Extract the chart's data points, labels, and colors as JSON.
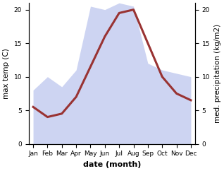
{
  "months": [
    "Jan",
    "Feb",
    "Mar",
    "Apr",
    "May",
    "Jun",
    "Jul",
    "Aug",
    "Sep",
    "Oct",
    "Nov",
    "Dec"
  ],
  "month_positions": [
    1,
    2,
    3,
    4,
    5,
    6,
    7,
    8,
    9,
    10,
    11,
    12
  ],
  "temperature": [
    5.5,
    4.0,
    4.5,
    7.0,
    11.5,
    16.0,
    19.5,
    20.0,
    15.0,
    10.0,
    7.5,
    6.5
  ],
  "precipitation": [
    8.0,
    10.0,
    8.5,
    11.0,
    20.5,
    20.0,
    21.0,
    20.5,
    12.0,
    11.0,
    10.5,
    10.0
  ],
  "temp_color": "#993333",
  "precip_fill_color": "#c5cdf0",
  "precip_line_color": "#c5cdf0",
  "precip_alpha": 0.85,
  "ylabel_left": "max temp (C)",
  "ylabel_right": "med. precipitation (kg/m2)",
  "xlabel": "date (month)",
  "ylim_left": [
    0,
    21
  ],
  "ylim_right": [
    0,
    21
  ],
  "yticks_left": [
    0,
    5,
    10,
    15,
    20
  ],
  "yticks_right": [
    0,
    5,
    10,
    15,
    20
  ],
  "background_color": "#ffffff",
  "label_fontsize": 7.5,
  "tick_fontsize": 6.5,
  "xlabel_fontsize": 8,
  "linewidth_temp": 2.2
}
